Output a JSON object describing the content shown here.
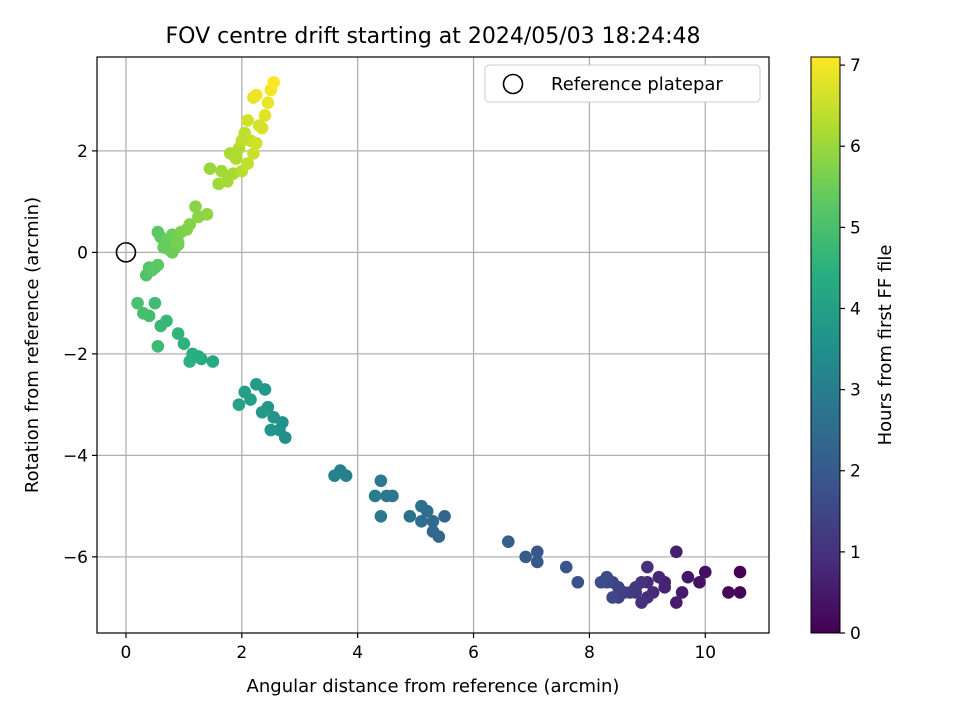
{
  "chart_data": {
    "type": "scatter",
    "title": "FOV centre drift starting at 2024/05/03 18:24:48",
    "xlabel": "Angular distance from reference (arcmin)",
    "ylabel": "Rotation from reference (arcmin)",
    "xlim": [
      -0.5,
      11.1
    ],
    "ylim": [
      -7.5,
      3.85
    ],
    "x_ticks": [
      0,
      2,
      4,
      6,
      8,
      10
    ],
    "y_ticks": [
      -6,
      -4,
      -2,
      0,
      2
    ],
    "grid": true,
    "legend": {
      "placement": "top-right",
      "entries": [
        "Reference platepar"
      ]
    },
    "reference_point": {
      "x": 0,
      "y": 0,
      "marker": "open-circle",
      "label": "Reference platepar"
    },
    "colorbar": {
      "label": "Hours from first FF file",
      "range": [
        0,
        7.1
      ],
      "ticks": [
        0,
        1,
        2,
        3,
        4,
        5,
        6,
        7
      ],
      "colormap": "viridis"
    },
    "series": [
      {
        "name": "",
        "x": [
          10.6,
          10.6,
          10.4,
          10.0,
          9.9,
          9.7,
          9.6,
          9.5,
          9.5,
          9.3,
          9.3,
          9.2,
          9.1,
          9.0,
          9.0,
          9.0,
          8.9,
          8.9,
          8.8,
          8.8,
          8.7,
          8.6,
          8.5,
          8.5,
          8.4,
          8.4,
          8.3,
          8.3,
          8.2,
          7.8,
          7.6,
          7.1,
          7.1,
          6.9,
          6.6,
          5.5,
          5.4,
          5.3,
          5.3,
          5.2,
          5.1,
          5.1,
          4.9,
          4.6,
          4.5,
          4.4,
          4.4,
          4.3,
          3.8,
          3.7,
          3.6,
          2.75,
          2.7,
          2.65,
          2.55,
          2.5,
          2.45,
          2.4,
          2.35,
          2.25,
          2.15,
          2.05,
          1.95,
          1.5,
          1.3,
          1.25,
          1.15,
          1.1,
          1.0,
          0.9,
          0.7,
          0.6,
          0.55,
          0.5,
          0.4,
          0.3,
          0.2,
          0.35,
          0.4,
          0.45,
          0.5,
          0.55,
          0.6,
          0.7,
          0.75,
          0.8,
          0.85,
          0.9,
          0.95,
          1.05,
          1.1,
          1.2,
          1.25,
          1.4,
          0.9,
          0.8,
          0.65,
          0.55,
          1.45,
          1.6,
          1.75,
          1.85,
          1.9,
          1.95,
          2.0,
          2.05,
          2.1,
          2.15,
          2.2,
          2.25,
          2.3,
          2.35,
          2.4,
          2.45,
          2.5,
          2.55,
          1.65,
          1.8,
          2.0,
          2.1,
          2.2,
          2.25
        ],
        "y": [
          -6.3,
          -6.7,
          -6.7,
          -6.3,
          -6.5,
          -6.4,
          -6.7,
          -6.9,
          -5.9,
          -6.5,
          -6.6,
          -6.4,
          -6.7,
          -6.5,
          -6.8,
          -6.2,
          -6.9,
          -6.5,
          -6.6,
          -6.7,
          -6.7,
          -6.7,
          -6.8,
          -6.6,
          -6.5,
          -6.8,
          -6.5,
          -6.4,
          -6.5,
          -6.5,
          -6.2,
          -5.9,
          -6.1,
          -6.0,
          -5.7,
          -5.2,
          -5.6,
          -5.5,
          -5.3,
          -5.1,
          -5.3,
          -5.0,
          -5.2,
          -4.8,
          -4.8,
          -4.5,
          -5.2,
          -4.8,
          -4.4,
          -4.3,
          -4.4,
          -3.65,
          -3.35,
          -3.5,
          -3.25,
          -3.5,
          -3.05,
          -2.7,
          -3.15,
          -2.6,
          -2.9,
          -2.75,
          -3.0,
          -2.15,
          -2.1,
          -2.05,
          -2.0,
          -2.15,
          -1.8,
          -1.6,
          -1.35,
          -1.45,
          -1.85,
          -1.0,
          -1.25,
          -1.2,
          -1.0,
          -0.45,
          -0.3,
          -0.35,
          -0.3,
          -0.25,
          0.3,
          0.2,
          0.05,
          0.35,
          0.1,
          0.2,
          0.4,
          0.45,
          0.55,
          0.9,
          0.7,
          0.75,
          0.15,
          0.0,
          0.1,
          0.4,
          1.65,
          1.35,
          1.4,
          1.55,
          1.85,
          2.05,
          1.6,
          2.35,
          1.75,
          2.2,
          1.95,
          2.15,
          2.5,
          2.45,
          2.7,
          2.95,
          3.2,
          3.35,
          1.6,
          1.95,
          2.2,
          2.6,
          3.05,
          3.1
        ],
        "hours": [
          0.05,
          0.1,
          0.15,
          0.3,
          0.35,
          0.4,
          0.5,
          0.55,
          0.6,
          0.6,
          0.7,
          0.75,
          0.8,
          0.85,
          0.9,
          0.95,
          1.0,
          1.05,
          1.1,
          1.15,
          1.2,
          1.3,
          1.35,
          1.4,
          1.45,
          1.5,
          1.55,
          1.6,
          1.65,
          1.75,
          1.85,
          1.95,
          2.0,
          2.05,
          2.15,
          2.3,
          2.35,
          2.4,
          2.45,
          2.5,
          2.55,
          2.6,
          2.65,
          2.75,
          2.8,
          2.85,
          2.9,
          2.95,
          3.05,
          3.1,
          3.15,
          3.5,
          3.55,
          3.6,
          3.65,
          3.7,
          3.75,
          3.8,
          3.85,
          3.9,
          3.95,
          4.0,
          4.05,
          4.3,
          4.35,
          4.4,
          4.45,
          4.5,
          4.55,
          4.6,
          4.7,
          4.75,
          4.8,
          4.85,
          4.9,
          4.95,
          5.0,
          5.1,
          5.15,
          5.2,
          5.25,
          5.3,
          5.35,
          5.4,
          5.45,
          5.5,
          5.55,
          5.6,
          5.65,
          5.7,
          5.75,
          5.8,
          5.85,
          5.9,
          5.6,
          5.5,
          5.4,
          5.3,
          6.0,
          6.05,
          6.1,
          6.15,
          6.2,
          6.3,
          6.35,
          6.4,
          6.45,
          6.5,
          6.55,
          6.6,
          6.65,
          6.7,
          6.8,
          6.9,
          7.0,
          7.1,
          6.05,
          6.2,
          6.4,
          6.6,
          6.8,
          6.95
        ]
      }
    ]
  }
}
